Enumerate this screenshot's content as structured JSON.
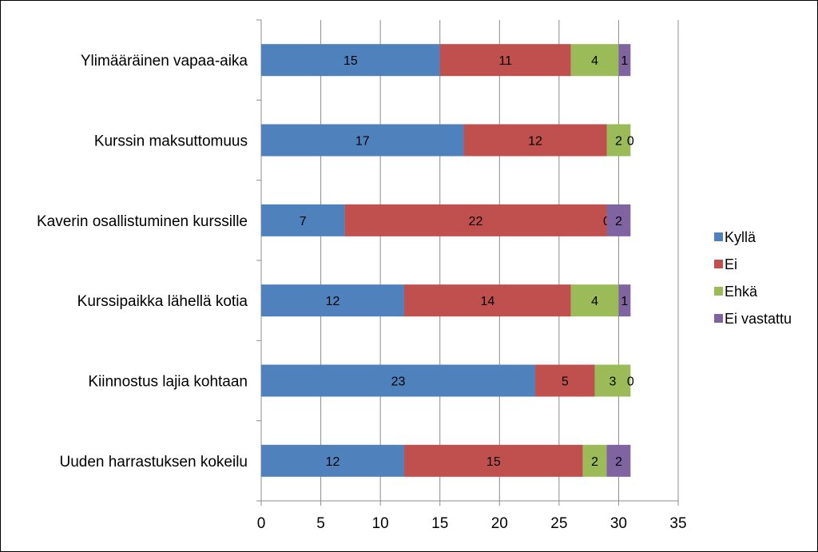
{
  "chart_data": {
    "type": "bar",
    "orientation": "horizontal",
    "stacked": true,
    "categories": [
      "Ylimääräinen vapaa-aika",
      "Kurssin maksuttomuus",
      "Kaverin osallistuminen kurssille",
      "Kurssipaikka lähellä kotia",
      "Kiinnostus lajia kohtaan",
      "Uuden harrastuksen kokeilu"
    ],
    "series": [
      {
        "name": "Kyllä",
        "color": "#4F81BD",
        "values": [
          15,
          17,
          7,
          12,
          23,
          12
        ]
      },
      {
        "name": "Ei",
        "color": "#C0504D",
        "values": [
          11,
          12,
          22,
          14,
          5,
          15
        ]
      },
      {
        "name": "Ehkä",
        "color": "#9BBB59",
        "values": [
          4,
          2,
          0,
          4,
          3,
          2
        ]
      },
      {
        "name": "Ei vastattu",
        "color": "#8064A2",
        "values": [
          1,
          0,
          2,
          1,
          0,
          2
        ]
      }
    ],
    "xlim": [
      0,
      35
    ],
    "xticks": [
      "0",
      "5",
      "10",
      "15",
      "20",
      "25",
      "30",
      "35"
    ],
    "grid": "vertical",
    "legend_position": "right",
    "title": "",
    "xlabel": "",
    "ylabel": ""
  }
}
